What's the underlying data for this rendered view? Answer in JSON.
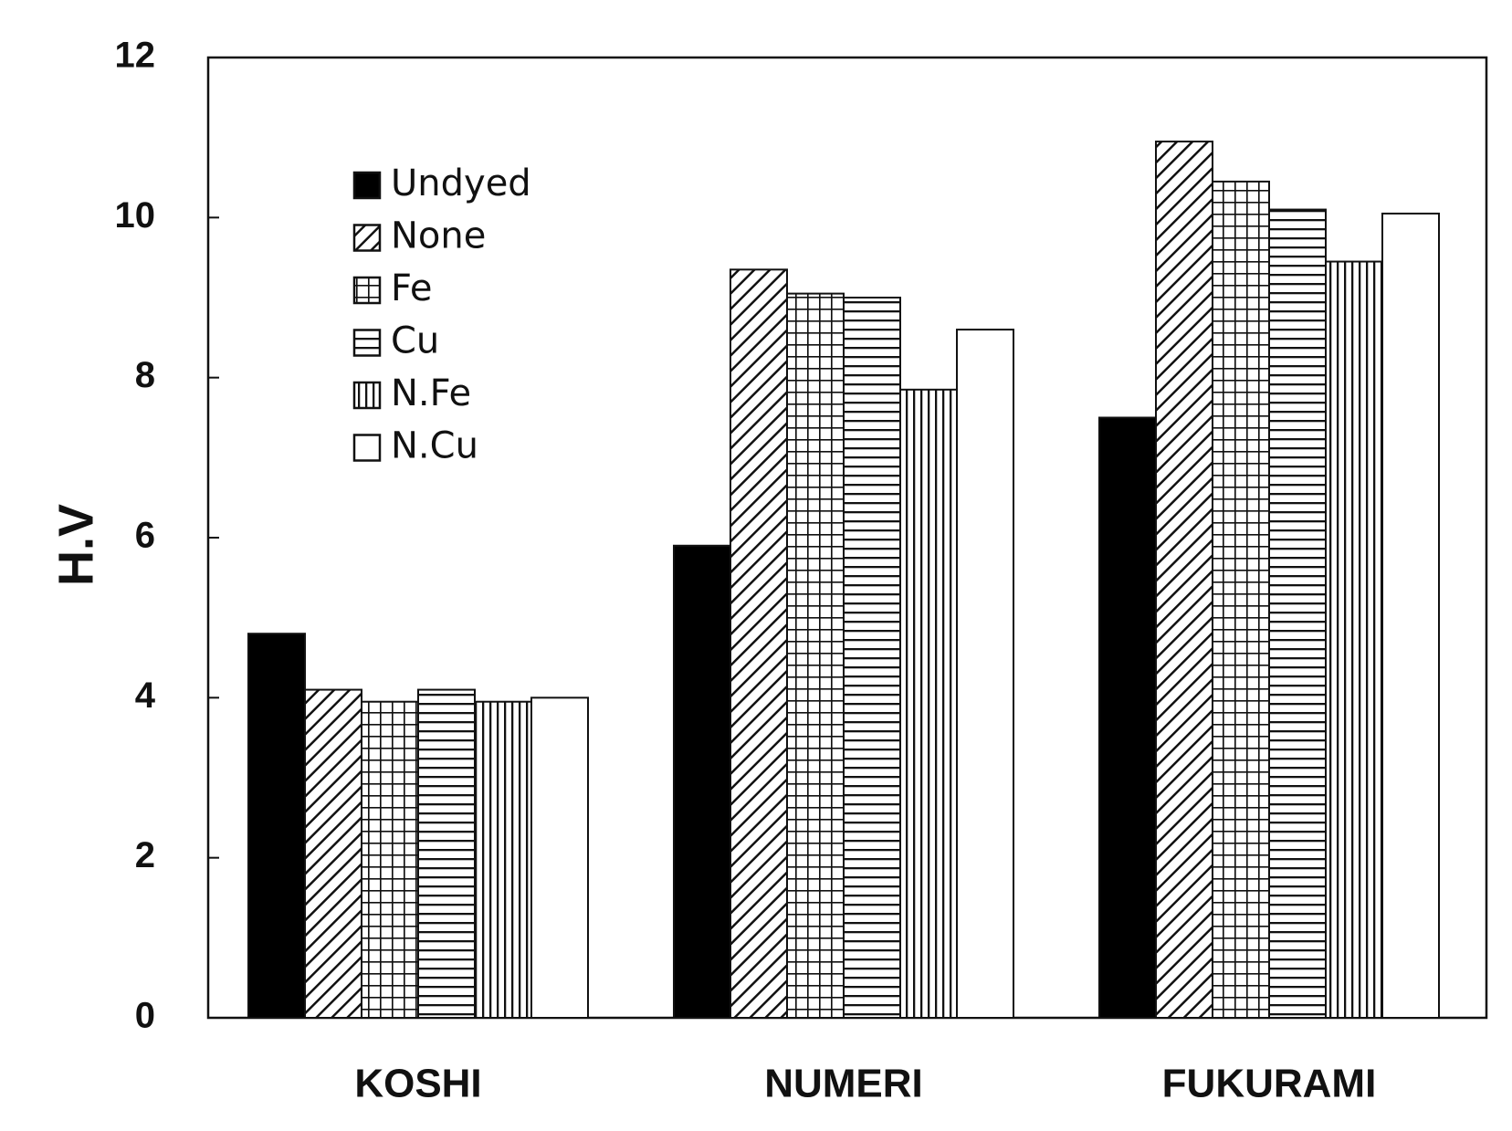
{
  "chart_data": {
    "type": "bar",
    "title": "",
    "xlabel": "",
    "ylabel": "H.V",
    "ylim": [
      0,
      12
    ],
    "yticks": [
      0,
      2,
      4,
      6,
      8,
      10,
      12
    ],
    "grid": false,
    "legend_position": "top-left",
    "categories": [
      "KOSHI",
      "NUMERI",
      "FUKURAMI"
    ],
    "series": [
      {
        "name": "Undyed",
        "pattern": "solid",
        "values": [
          4.8,
          5.9,
          7.5
        ]
      },
      {
        "name": "None",
        "pattern": "diagonal",
        "values": [
          4.1,
          9.35,
          10.95
        ]
      },
      {
        "name": "Fe",
        "pattern": "grid",
        "values": [
          3.95,
          9.05,
          10.45
        ]
      },
      {
        "name": "Cu",
        "pattern": "horizontal",
        "values": [
          4.1,
          9.0,
          10.1
        ]
      },
      {
        "name": "N.Fe",
        "pattern": "vertical",
        "values": [
          3.95,
          7.85,
          9.45
        ]
      },
      {
        "name": "N.Cu",
        "pattern": "empty",
        "values": [
          4.0,
          8.6,
          10.05
        ]
      }
    ]
  }
}
